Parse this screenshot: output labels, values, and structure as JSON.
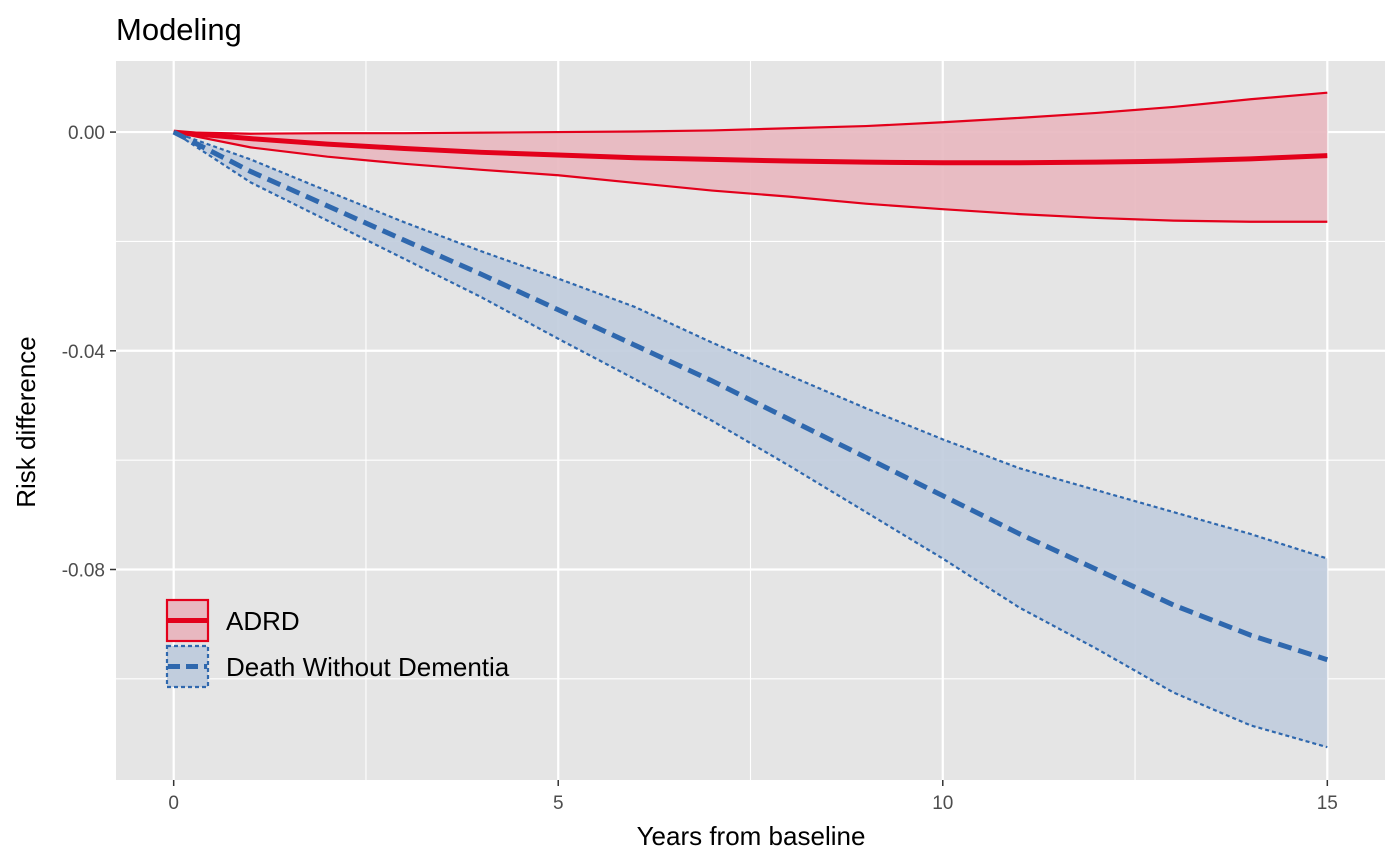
{
  "chart_data": {
    "type": "line",
    "title": "Modeling",
    "xlabel": "Years from baseline",
    "ylabel": "Risk difference",
    "xlim": [
      -0.75,
      15.75
    ],
    "ylim": [
      -0.1185,
      0.013
    ],
    "x_ticks": [
      0,
      5,
      10,
      15
    ],
    "x_tick_labels": [
      "0",
      "5",
      "10",
      "15"
    ],
    "y_ticks": [
      0.0,
      -0.04,
      -0.08
    ],
    "y_tick_labels": [
      "0.00",
      "-0.04",
      "-0.08"
    ],
    "grid": true,
    "background": "#e5e5e5",
    "legend_position": "bottom-left inside",
    "series": [
      {
        "name": "ADRD",
        "color": "#e3001b",
        "fill": "#e8b8c0",
        "line_style": "solid",
        "x": [
          0,
          1,
          2,
          3,
          4,
          5,
          6,
          7,
          8,
          9,
          10,
          11,
          12,
          13,
          14,
          15
        ],
        "y": [
          0,
          -0.0012,
          -0.0022,
          -0.003,
          -0.0037,
          -0.0042,
          -0.0047,
          -0.005,
          -0.0053,
          -0.0055,
          -0.0056,
          -0.0056,
          -0.0055,
          -0.0053,
          -0.0049,
          -0.0043
        ],
        "lower": [
          0,
          -0.0028,
          -0.0045,
          -0.0058,
          -0.0069,
          -0.0079,
          -0.0093,
          -0.0107,
          -0.0118,
          -0.0131,
          -0.0141,
          -0.015,
          -0.0157,
          -0.0162,
          -0.0164,
          -0.0164
        ],
        "upper": [
          0,
          -0.0003,
          -0.0002,
          -0.0002,
          -0.0001,
          0.0,
          0.0001,
          0.0003,
          0.0007,
          0.0011,
          0.0018,
          0.0026,
          0.0035,
          0.0046,
          0.006,
          0.0072
        ]
      },
      {
        "name": "Death Without Dementia",
        "color": "#2f68ae",
        "fill": "#c1cddd",
        "line_style": "dashed",
        "x": [
          0,
          1,
          2,
          3,
          4,
          5,
          6,
          7,
          8,
          9,
          10,
          11,
          12,
          13,
          14,
          15
        ],
        "y": [
          0,
          -0.0072,
          -0.0135,
          -0.0198,
          -0.026,
          -0.0325,
          -0.039,
          -0.0455,
          -0.0525,
          -0.0595,
          -0.0665,
          -0.0735,
          -0.08,
          -0.0865,
          -0.092,
          -0.0965
        ],
        "lower": [
          0,
          -0.0092,
          -0.0162,
          -0.0232,
          -0.0302,
          -0.0378,
          -0.0452,
          -0.0528,
          -0.061,
          -0.0695,
          -0.078,
          -0.087,
          -0.0945,
          -0.1025,
          -0.1085,
          -0.1125
        ],
        "upper": [
          0,
          -0.005,
          -0.0108,
          -0.0165,
          -0.0218,
          -0.0268,
          -0.032,
          -0.0385,
          -0.0445,
          -0.0505,
          -0.0562,
          -0.0615,
          -0.0655,
          -0.0695,
          -0.0735,
          -0.078
        ]
      }
    ]
  }
}
